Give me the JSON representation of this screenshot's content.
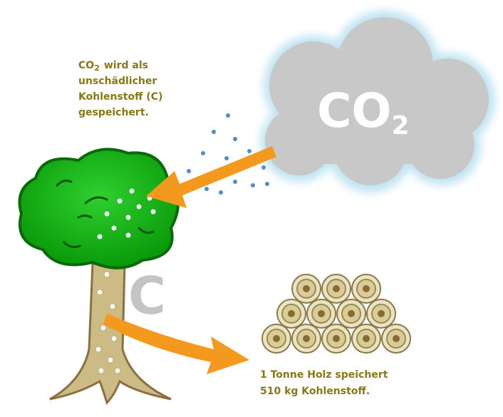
{
  "caption_top": {
    "formula": "CO",
    "subscript": "2",
    "lines": [
      "wird als",
      "unschädlicher",
      "Kohlenstoff (C)",
      "gespeichert."
    ]
  },
  "cloud": {
    "formula": "CO",
    "subscript": "2"
  },
  "tree_letter": "C",
  "caption_bottom": {
    "lines": [
      "1 Tonne Holz speichert",
      "510 kg Kohlenstoff."
    ]
  }
}
